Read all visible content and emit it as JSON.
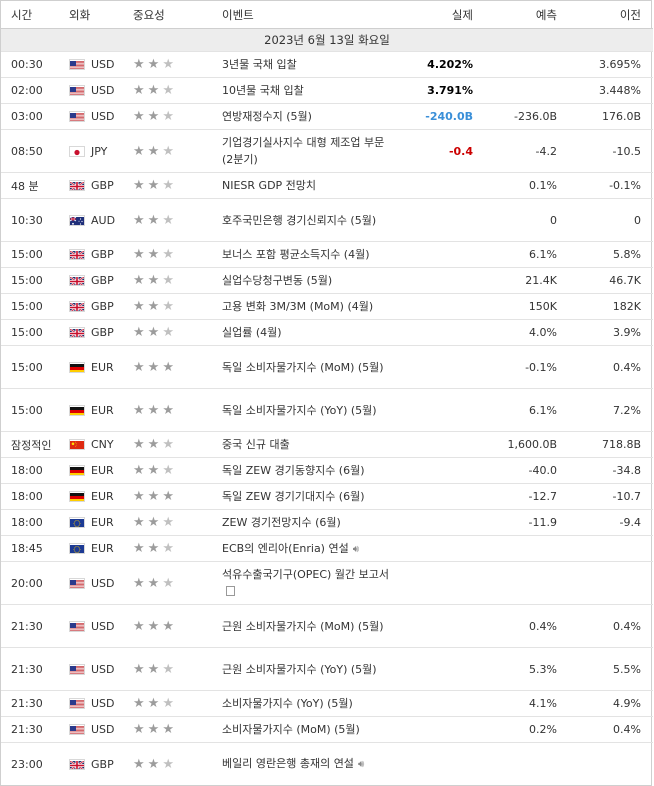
{
  "header": {
    "time": "시간",
    "currency": "외화",
    "importance": "중요성",
    "event": "이벤트",
    "actual": "실제",
    "forecast": "예측",
    "previous": "이전"
  },
  "date_label": "2023년 6월 13일 화요일",
  "colors": {
    "positive": "#cc0000",
    "negative": "#3a8fd8",
    "neutral": "#000000",
    "star_off": "#c0c0c0",
    "star_on": "#9c9c9c"
  },
  "rows": [
    {
      "time": "00:30",
      "ccy": "USD",
      "flag": "us",
      "stars": 2,
      "event": "3년물 국채 입찰",
      "actual": "4.202%",
      "actual_color": "#000000",
      "forecast": "",
      "previous": "3.695%"
    },
    {
      "time": "02:00",
      "ccy": "USD",
      "flag": "us",
      "stars": 2,
      "event": "10년물 국채 입찰",
      "actual": "3.791%",
      "actual_color": "#000000",
      "forecast": "",
      "previous": "3.448%"
    },
    {
      "time": "03:00",
      "ccy": "USD",
      "flag": "us",
      "stars": 2,
      "event": "연방재정수지 (5월)",
      "actual": "-240.0B",
      "actual_color": "#3a8fd8",
      "forecast": "-236.0B",
      "previous": "176.0B"
    },
    {
      "time": "08:50",
      "ccy": "JPY",
      "flag": "jp",
      "stars": 2,
      "event": "기업경기실사지수 대형 제조업 부문 (2분기)",
      "actual": "-0.4",
      "actual_color": "#cc0000",
      "forecast": "-4.2",
      "previous": "-10.5",
      "tall": true
    },
    {
      "time": "48 분",
      "ccy": "GBP",
      "flag": "gb",
      "stars": 2,
      "event": "NIESR GDP 전망치",
      "actual": "",
      "forecast": "0.1%",
      "previous": "-0.1%"
    },
    {
      "time": "10:30",
      "ccy": "AUD",
      "flag": "au",
      "stars": 2,
      "event": "호주국민은행 경기신뢰지수 (5월)",
      "actual": "",
      "forecast": "0",
      "previous": "0",
      "tall": true
    },
    {
      "time": "15:00",
      "ccy": "GBP",
      "flag": "gb",
      "stars": 2,
      "event": "보너스 포함 평균소득지수 (4월)",
      "actual": "",
      "forecast": "6.1%",
      "previous": "5.8%"
    },
    {
      "time": "15:00",
      "ccy": "GBP",
      "flag": "gb",
      "stars": 2,
      "event": "실업수당청구변동 (5월)",
      "actual": "",
      "forecast": "21.4K",
      "previous": "46.7K"
    },
    {
      "time": "15:00",
      "ccy": "GBP",
      "flag": "gb",
      "stars": 2,
      "event": "고용 변화 3M/3M (MoM) (4월)",
      "actual": "",
      "forecast": "150K",
      "previous": "182K"
    },
    {
      "time": "15:00",
      "ccy": "GBP",
      "flag": "gb",
      "stars": 2,
      "event": "실업률 (4월)",
      "actual": "",
      "forecast": "4.0%",
      "previous": "3.9%"
    },
    {
      "time": "15:00",
      "ccy": "EUR",
      "flag": "de",
      "stars": 3,
      "event": "독일 소비자물가지수 (MoM) (5월)",
      "actual": "",
      "forecast": "-0.1%",
      "previous": "0.4%",
      "tall": true
    },
    {
      "time": "15:00",
      "ccy": "EUR",
      "flag": "de",
      "stars": 3,
      "event": "독일 소비자물가지수 (YoY) (5월)",
      "actual": "",
      "forecast": "6.1%",
      "previous": "7.2%",
      "tall": true
    },
    {
      "time": "잠정적인",
      "ccy": "CNY",
      "flag": "cn",
      "stars": 2,
      "event": "중국 신규 대출",
      "actual": "",
      "forecast": "1,600.0B",
      "previous": "718.8B"
    },
    {
      "time": "18:00",
      "ccy": "EUR",
      "flag": "de",
      "stars": 2,
      "event": "독일 ZEW 경기동향지수 (6월)",
      "actual": "",
      "forecast": "-40.0",
      "previous": "-34.8"
    },
    {
      "time": "18:00",
      "ccy": "EUR",
      "flag": "de",
      "stars": 3,
      "event": "독일 ZEW 경기기대지수 (6월)",
      "actual": "",
      "forecast": "-12.7",
      "previous": "-10.7"
    },
    {
      "time": "18:00",
      "ccy": "EUR",
      "flag": "eu",
      "stars": 2,
      "event": "ZEW 경기전망지수 (6월)",
      "actual": "",
      "forecast": "-11.9",
      "previous": "-9.4"
    },
    {
      "time": "18:45",
      "ccy": "EUR",
      "flag": "eu",
      "stars": 2,
      "event": "ECB의 엔리아(Enria) 연설",
      "actual": "",
      "forecast": "",
      "previous": "",
      "icon": "sound"
    },
    {
      "time": "20:00",
      "ccy": "USD",
      "flag": "us",
      "stars": 2,
      "event": "석유수출국기구(OPEC) 월간 보고서",
      "actual": "",
      "forecast": "",
      "previous": "",
      "tall": true,
      "icon": "doc"
    },
    {
      "time": "21:30",
      "ccy": "USD",
      "flag": "us",
      "stars": 3,
      "event": "근원 소비자물가지수 (MoM) (5월)",
      "actual": "",
      "forecast": "0.4%",
      "previous": "0.4%",
      "tall": true
    },
    {
      "time": "21:30",
      "ccy": "USD",
      "flag": "us",
      "stars": 2,
      "event": "근원 소비자물가지수 (YoY) (5월)",
      "actual": "",
      "forecast": "5.3%",
      "previous": "5.5%",
      "tall": true
    },
    {
      "time": "21:30",
      "ccy": "USD",
      "flag": "us",
      "stars": 2,
      "event": "소비자물가지수 (YoY) (5월)",
      "actual": "",
      "forecast": "4.1%",
      "previous": "4.9%"
    },
    {
      "time": "21:30",
      "ccy": "USD",
      "flag": "us",
      "stars": 3,
      "event": "소비자물가지수 (MoM) (5월)",
      "actual": "",
      "forecast": "0.2%",
      "previous": "0.4%"
    },
    {
      "time": "23:00",
      "ccy": "GBP",
      "flag": "gb",
      "stars": 2,
      "event": "베일리 영란은행 총재의 연설",
      "actual": "",
      "forecast": "",
      "previous": "",
      "tall": true,
      "icon": "sound"
    }
  ]
}
